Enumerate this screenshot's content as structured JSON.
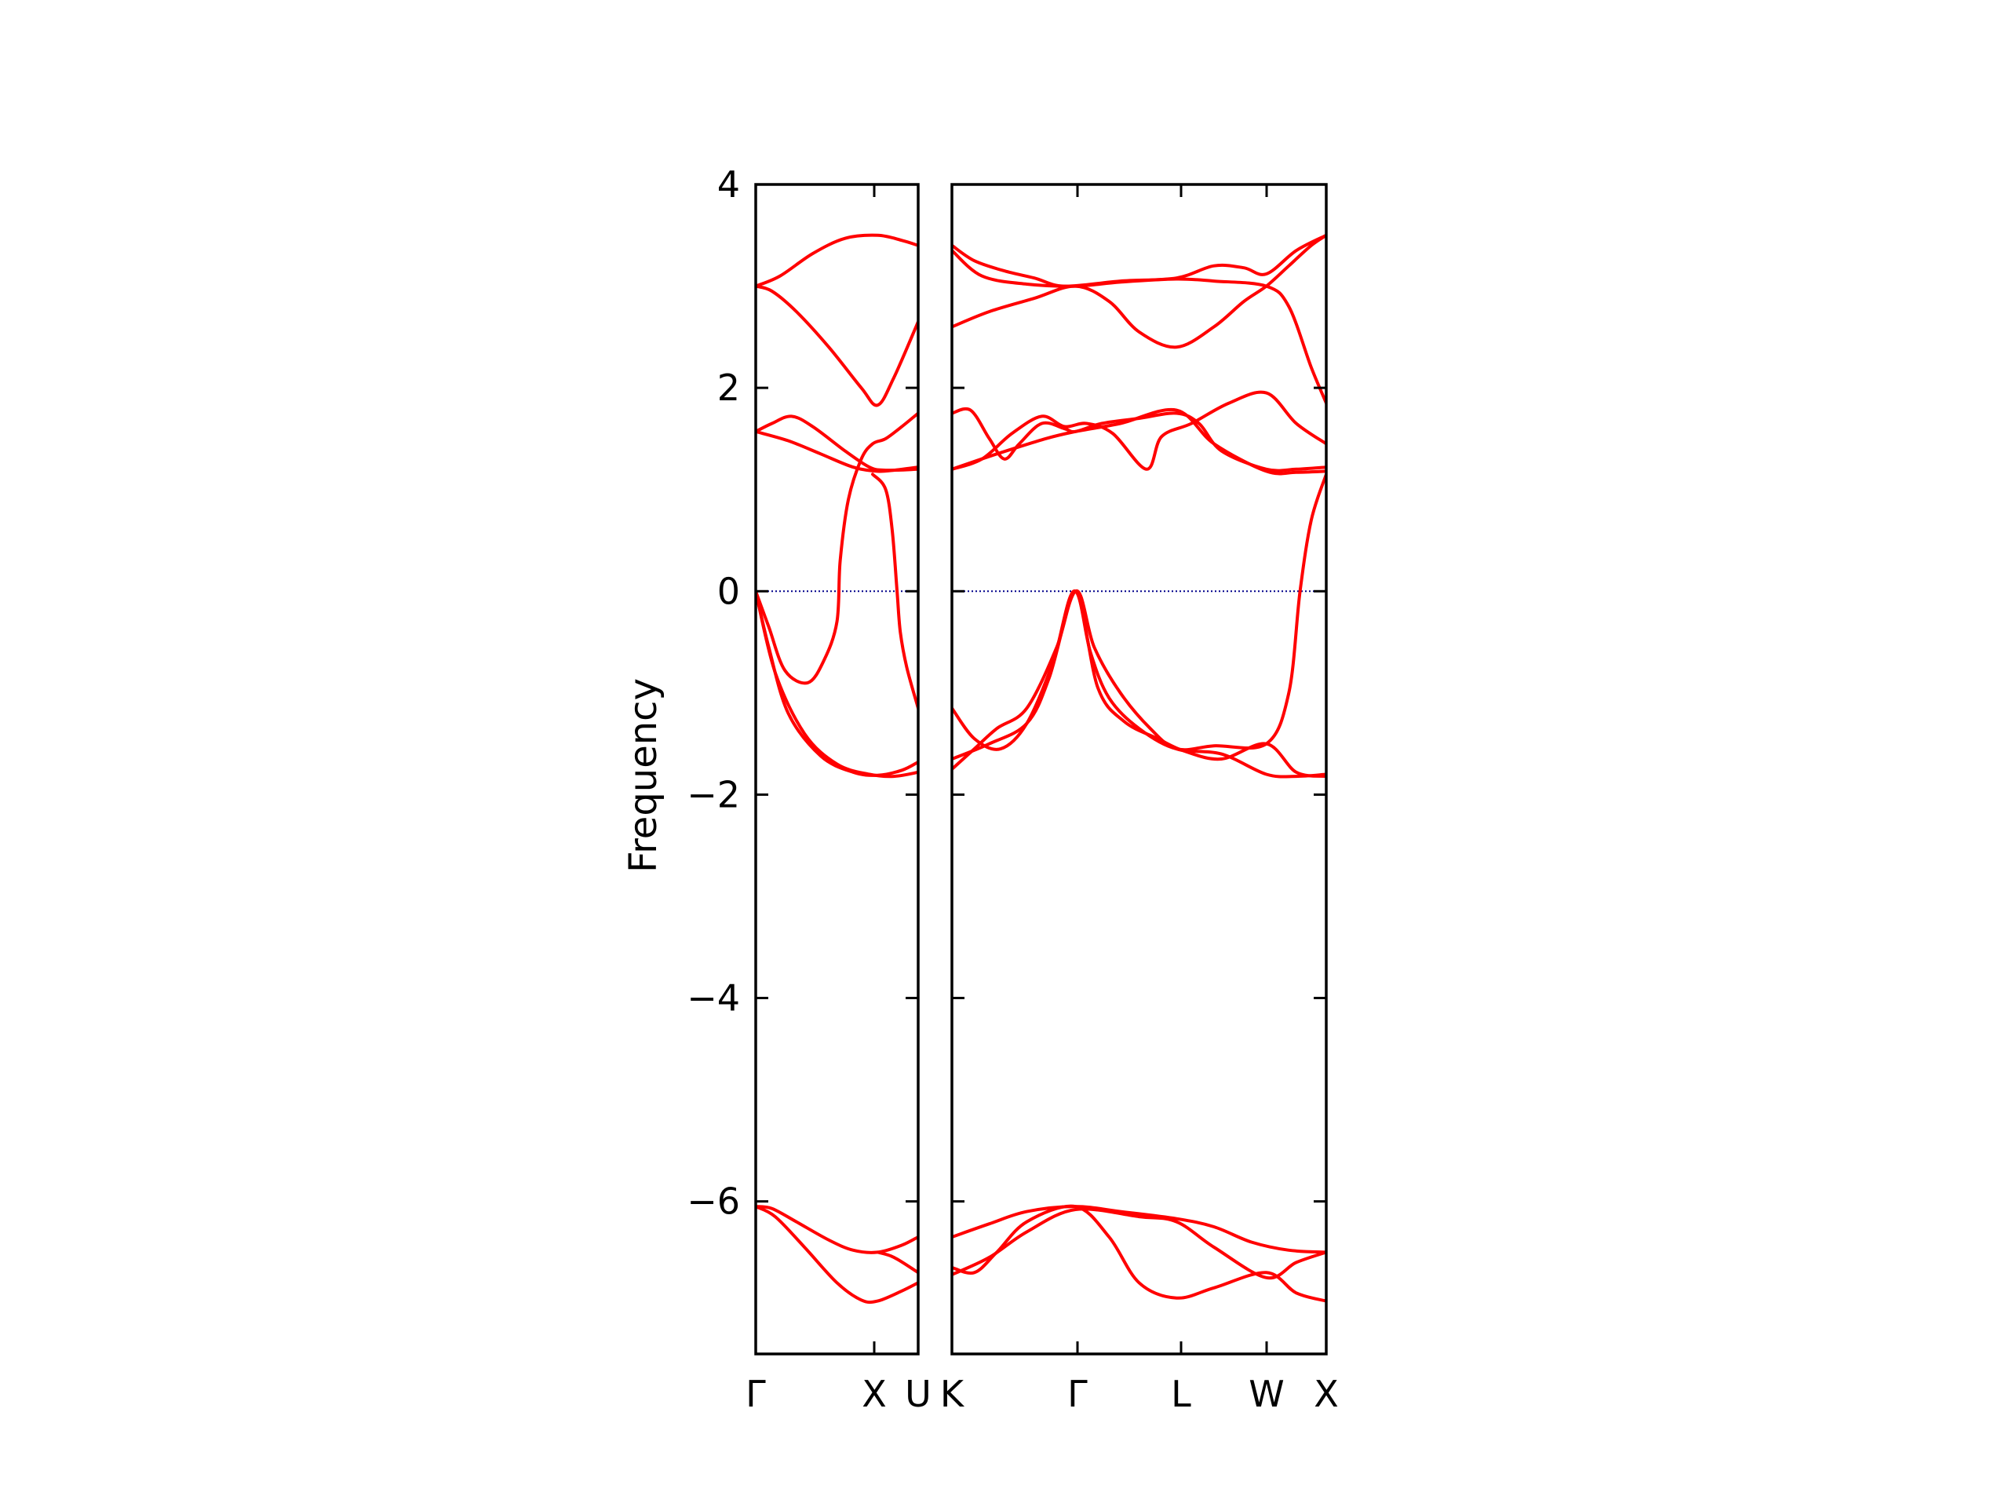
{
  "chart_data": {
    "type": "line",
    "ylabel": "Frequency",
    "ylim": [
      -7.5,
      4
    ],
    "yticks": [
      4,
      2,
      0,
      -2,
      -4,
      -6
    ],
    "ytick_labels": [
      "4",
      "2",
      "0",
      "−2",
      "−4",
      "−6"
    ],
    "zero_line": {
      "value": 0,
      "color": "#00008b",
      "style": "dotted"
    },
    "line_color": "#ff0000",
    "grid": false,
    "panels": [
      {
        "x_labels": [
          "Γ",
          "X",
          "U"
        ],
        "series": [
          {
            "points": [
              [
                0,
                3.0
              ],
              [
                0.15,
                3.1
              ],
              [
                0.35,
                3.32
              ],
              [
                0.55,
                3.47
              ],
              [
                0.75,
                3.5
              ],
              [
                0.9,
                3.45
              ],
              [
                1.0,
                3.4
              ]
            ]
          },
          {
            "points": [
              [
                0,
                3.0
              ],
              [
                0.1,
                2.95
              ],
              [
                0.25,
                2.75
              ],
              [
                0.45,
                2.4
              ],
              [
                0.65,
                2.0
              ],
              [
                0.75,
                1.83
              ],
              [
                0.85,
                2.1
              ],
              [
                1.0,
                2.65
              ]
            ]
          },
          {
            "points": [
              [
                0,
                1.57
              ],
              [
                0.1,
                1.65
              ],
              [
                0.22,
                1.72
              ],
              [
                0.35,
                1.62
              ],
              [
                0.55,
                1.38
              ],
              [
                0.7,
                1.22
              ],
              [
                0.8,
                1.19
              ],
              [
                1.0,
                1.2
              ]
            ]
          },
          {
            "points": [
              [
                0,
                1.57
              ],
              [
                0.2,
                1.48
              ],
              [
                0.4,
                1.35
              ],
              [
                0.6,
                1.22
              ],
              [
                0.75,
                1.18
              ],
              [
                0.85,
                1.19
              ],
              [
                1.0,
                1.22
              ]
            ]
          },
          {
            "points": [
              [
                0,
                0.0
              ],
              [
                0.08,
                -0.35
              ],
              [
                0.18,
                -0.78
              ],
              [
                0.32,
                -0.9
              ],
              [
                0.42,
                -0.68
              ],
              [
                0.5,
                -0.3
              ],
              [
                0.52,
                0.3
              ],
              [
                0.57,
                0.9
              ],
              [
                0.65,
                1.3
              ],
              [
                0.72,
                1.45
              ],
              [
                0.8,
                1.5
              ],
              [
                0.9,
                1.62
              ],
              [
                1.0,
                1.75
              ]
            ]
          },
          {
            "points": [
              [
                0,
                0.0
              ],
              [
                0.08,
                -0.55
              ],
              [
                0.2,
                -1.2
              ],
              [
                0.4,
                -1.62
              ],
              [
                0.6,
                -1.78
              ],
              [
                0.75,
                -1.81
              ],
              [
                0.9,
                -1.76
              ],
              [
                1.0,
                -1.68
              ]
            ]
          },
          {
            "points": [
              [
                0,
                0.0
              ],
              [
                0.12,
                -0.8
              ],
              [
                0.3,
                -1.4
              ],
              [
                0.5,
                -1.7
              ],
              [
                0.7,
                -1.8
              ],
              [
                0.85,
                -1.82
              ],
              [
                1.0,
                -1.78
              ]
            ]
          },
          {
            "points": [
              [
                0.72,
                1.15
              ],
              [
                0.8,
                1.0
              ],
              [
                0.84,
                0.6
              ],
              [
                0.87,
                0.0
              ],
              [
                0.89,
                -0.4
              ],
              [
                0.93,
                -0.75
              ],
              [
                1.0,
                -1.15
              ]
            ]
          },
          {
            "points": [
              [
                0,
                -6.05
              ],
              [
                0.1,
                -6.07
              ],
              [
                0.25,
                -6.2
              ],
              [
                0.45,
                -6.38
              ],
              [
                0.6,
                -6.48
              ],
              [
                0.75,
                -6.5
              ],
              [
                0.9,
                -6.43
              ],
              [
                1.0,
                -6.35
              ]
            ]
          },
          {
            "points": [
              [
                0,
                -6.05
              ],
              [
                0.12,
                -6.15
              ],
              [
                0.3,
                -6.45
              ],
              [
                0.5,
                -6.8
              ],
              [
                0.65,
                -6.97
              ],
              [
                0.75,
                -6.98
              ],
              [
                0.9,
                -6.88
              ],
              [
                1.0,
                -6.8
              ]
            ]
          },
          {
            "points": [
              [
                0.75,
                -6.5
              ],
              [
                0.85,
                -6.55
              ],
              [
                1.0,
                -6.7
              ]
            ]
          }
        ]
      },
      {
        "x_labels": [
          "K",
          "Γ",
          "L",
          "W",
          "X"
        ],
        "series": [
          {
            "points": [
              [
                0,
                3.4
              ],
              [
                0.06,
                3.25
              ],
              [
                0.14,
                3.15
              ],
              [
                0.22,
                3.08
              ],
              [
                0.3,
                3.0
              ],
              [
                0.45,
                3.05
              ],
              [
                0.6,
                3.08
              ],
              [
                0.7,
                3.2
              ],
              [
                0.78,
                3.18
              ],
              [
                0.84,
                3.12
              ],
              [
                0.92,
                3.35
              ],
              [
                1.0,
                3.5
              ]
            ]
          },
          {
            "points": [
              [
                0,
                3.35
              ],
              [
                0.08,
                3.1
              ],
              [
                0.2,
                3.02
              ],
              [
                0.33,
                3.0
              ],
              [
                0.45,
                3.04
              ],
              [
                0.6,
                3.07
              ],
              [
                0.7,
                3.05
              ],
              [
                0.84,
                3.0
              ],
              [
                0.9,
                2.8
              ],
              [
                0.96,
                2.2
              ],
              [
                1.0,
                1.85
              ]
            ]
          },
          {
            "points": [
              [
                0,
                2.6
              ],
              [
                0.1,
                2.75
              ],
              [
                0.22,
                2.88
              ],
              [
                0.33,
                3.0
              ],
              [
                0.42,
                2.85
              ],
              [
                0.5,
                2.55
              ],
              [
                0.6,
                2.4
              ],
              [
                0.7,
                2.6
              ],
              [
                0.78,
                2.85
              ],
              [
                0.84,
                3.0
              ],
              [
                0.9,
                3.2
              ],
              [
                0.96,
                3.4
              ],
              [
                1.0,
                3.5
              ]
            ]
          },
          {
            "points": [
              [
                0,
                1.75
              ],
              [
                0.05,
                1.78
              ],
              [
                0.1,
                1.5
              ],
              [
                0.14,
                1.3
              ],
              [
                0.18,
                1.45
              ],
              [
                0.24,
                1.65
              ],
              [
                0.3,
                1.6
              ],
              [
                0.33,
                1.57
              ],
              [
                0.4,
                1.65
              ],
              [
                0.5,
                1.7
              ],
              [
                0.6,
                1.75
              ],
              [
                0.66,
                1.65
              ],
              [
                0.72,
                1.38
              ],
              [
                0.84,
                1.2
              ],
              [
                0.92,
                1.2
              ],
              [
                1.0,
                1.22
              ]
            ]
          },
          {
            "points": [
              [
                0,
                1.2
              ],
              [
                0.08,
                1.3
              ],
              [
                0.16,
                1.55
              ],
              [
                0.24,
                1.72
              ],
              [
                0.3,
                1.62
              ],
              [
                0.36,
                1.65
              ],
              [
                0.43,
                1.55
              ],
              [
                0.52,
                1.2
              ],
              [
                0.56,
                1.52
              ],
              [
                0.64,
                1.65
              ],
              [
                0.74,
                1.85
              ],
              [
                0.84,
                1.95
              ],
              [
                0.92,
                1.65
              ],
              [
                1.0,
                1.45
              ]
            ]
          },
          {
            "points": [
              [
                0,
                1.2
              ],
              [
                0.12,
                1.35
              ],
              [
                0.25,
                1.5
              ],
              [
                0.33,
                1.57
              ],
              [
                0.45,
                1.65
              ],
              [
                0.6,
                1.78
              ],
              [
                0.7,
                1.45
              ],
              [
                0.84,
                1.18
              ],
              [
                0.92,
                1.17
              ],
              [
                1.0,
                1.18
              ]
            ]
          },
          {
            "points": [
              [
                0,
                -1.75
              ],
              [
                0.06,
                -1.55
              ],
              [
                0.12,
                -1.35
              ],
              [
                0.2,
                -1.15
              ],
              [
                0.28,
                -0.55
              ],
              [
                0.33,
                0.0
              ],
              [
                0.37,
                -0.6
              ],
              [
                0.42,
                -1.05
              ],
              [
                0.5,
                -1.35
              ],
              [
                0.6,
                -1.55
              ],
              [
                0.7,
                -1.52
              ],
              [
                0.84,
                -1.5
              ],
              [
                0.9,
                -1.0
              ],
              [
                0.93,
                0.0
              ],
              [
                0.96,
                0.7
              ],
              [
                1.0,
                1.15
              ]
            ]
          },
          {
            "points": [
              [
                0,
                -1.65
              ],
              [
                0.1,
                -1.5
              ],
              [
                0.2,
                -1.3
              ],
              [
                0.26,
                -0.85
              ],
              [
                0.33,
                0.0
              ],
              [
                0.38,
                -0.55
              ],
              [
                0.45,
                -1.0
              ],
              [
                0.53,
                -1.35
              ],
              [
                0.6,
                -1.55
              ],
              [
                0.72,
                -1.6
              ],
              [
                0.84,
                -1.8
              ],
              [
                0.92,
                -1.82
              ],
              [
                1.0,
                -1.8
              ]
            ]
          },
          {
            "points": [
              [
                0,
                -1.15
              ],
              [
                0.06,
                -1.45
              ],
              [
                0.13,
                -1.55
              ],
              [
                0.2,
                -1.3
              ],
              [
                0.27,
                -0.7
              ],
              [
                0.33,
                0.0
              ],
              [
                0.39,
                -0.95
              ],
              [
                0.46,
                -1.28
              ],
              [
                0.55,
                -1.45
              ],
              [
                0.62,
                -1.57
              ],
              [
                0.72,
                -1.65
              ],
              [
                0.84,
                -1.5
              ],
              [
                0.92,
                -1.78
              ],
              [
                1.0,
                -1.82
              ]
            ]
          },
          {
            "points": [
              [
                0,
                -6.35
              ],
              [
                0.1,
                -6.22
              ],
              [
                0.2,
                -6.1
              ],
              [
                0.33,
                -6.05
              ],
              [
                0.45,
                -6.1
              ],
              [
                0.6,
                -6.17
              ],
              [
                0.7,
                -6.25
              ],
              [
                0.8,
                -6.4
              ],
              [
                0.9,
                -6.48
              ],
              [
                1.0,
                -6.5
              ]
            ]
          },
          {
            "points": [
              [
                0,
                -6.65
              ],
              [
                0.06,
                -6.7
              ],
              [
                0.12,
                -6.5
              ],
              [
                0.2,
                -6.2
              ],
              [
                0.33,
                -6.05
              ],
              [
                0.42,
                -6.35
              ],
              [
                0.5,
                -6.8
              ],
              [
                0.6,
                -6.95
              ],
              [
                0.7,
                -6.85
              ],
              [
                0.84,
                -6.7
              ],
              [
                0.92,
                -6.9
              ],
              [
                1.0,
                -6.98
              ]
            ]
          },
          {
            "points": [
              [
                0,
                -6.72
              ],
              [
                0.1,
                -6.55
              ],
              [
                0.2,
                -6.3
              ],
              [
                0.33,
                -6.08
              ],
              [
                0.5,
                -6.15
              ],
              [
                0.6,
                -6.2
              ],
              [
                0.7,
                -6.45
              ],
              [
                0.84,
                -6.75
              ],
              [
                0.92,
                -6.6
              ],
              [
                1.0,
                -6.5
              ]
            ]
          }
        ]
      }
    ]
  }
}
